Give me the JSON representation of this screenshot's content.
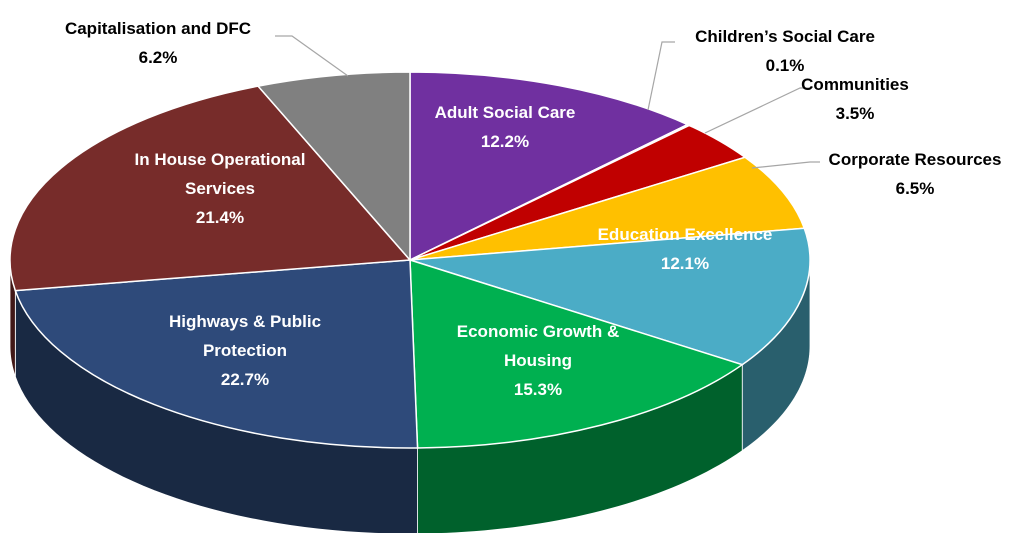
{
  "chart_data": {
    "type": "pie",
    "categories": [
      "Adult Social Care",
      "Children’s Social Care",
      "Communities",
      "Corporate Resources",
      "Education Excellence",
      "Economic Growth & Housing",
      "Highways & Public Protection",
      "In House Operational Services",
      "Capitalisation and DFC"
    ],
    "values": [
      12.2,
      0.1,
      3.5,
      6.5,
      12.1,
      15.3,
      22.7,
      21.4,
      6.2
    ],
    "value_labels": [
      "12.2%",
      "0.1%",
      "3.5%",
      "6.5%",
      "12.1%",
      "15.3%",
      "22.7%",
      "21.4%",
      "6.2%"
    ],
    "colors": [
      "#7030a0",
      "#00b050",
      "#c00000",
      "#ffc000",
      "#4bacc6",
      "#00b050",
      "#2e4a7a",
      "#772c2a",
      "#808080"
    ]
  }
}
